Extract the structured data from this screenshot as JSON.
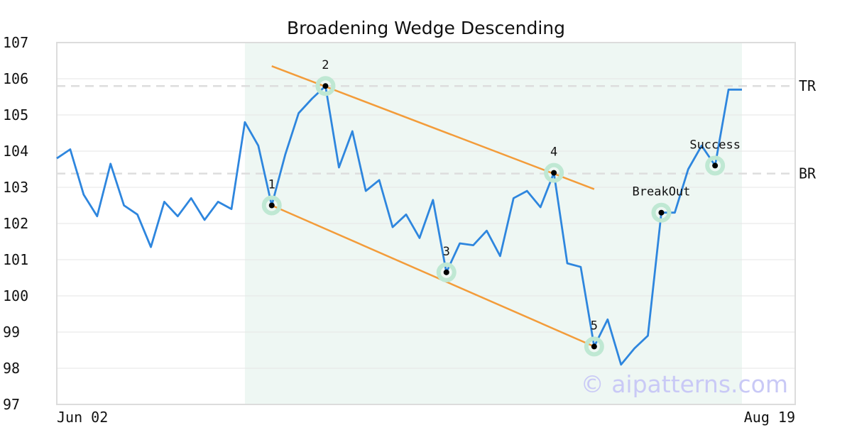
{
  "chart_data": {
    "type": "line",
    "title": "Broadening Wedge Descending",
    "xlabel": "",
    "ylabel": "",
    "ylim": [
      97,
      107
    ],
    "yticks": [
      "97",
      "98",
      "99",
      "100",
      "101",
      "102",
      "103",
      "104",
      "105",
      "106",
      "107"
    ],
    "x_tick_labels": [
      "Jun 02",
      "Aug 19"
    ],
    "grid": "horizontal",
    "colors": {
      "price": "#2e86de",
      "trendline": "#f39c3a",
      "pattern_zone": "#eef7f3",
      "marker_halo": "#bfe8d3",
      "marker_dot": "#000000",
      "reference": "#dddddd",
      "watermark": "#c9c9f6"
    },
    "series": [
      {
        "values": [
          103.8,
          104.05,
          102.8,
          102.2,
          103.65,
          102.5,
          102.25,
          101.35,
          102.6,
          102.2,
          102.7,
          102.1,
          102.6,
          102.4,
          104.8,
          104.15,
          102.5,
          103.9,
          105.05,
          105.45,
          105.8,
          103.55,
          104.55,
          102.9,
          103.2,
          101.9,
          102.25,
          101.6,
          102.65,
          100.65,
          101.45,
          101.4,
          101.8,
          101.1,
          102.7,
          102.9,
          102.45,
          103.4,
          100.9,
          100.8,
          98.6,
          99.35,
          98.1,
          98.55,
          98.9,
          102.3,
          102.3,
          103.5,
          104.15,
          103.6,
          105.7,
          105.7
        ]
      }
    ],
    "pattern_zone": {
      "start_index": 14,
      "end_index": 51
    },
    "trendlines": [
      {
        "start": [
          16,
          106.35
        ],
        "end": [
          40,
          102.95
        ]
      },
      {
        "start": [
          16,
          102.5
        ],
        "end": [
          40,
          98.6
        ]
      }
    ],
    "reference_lines": [
      {
        "label": "TR",
        "value": 105.8
      },
      {
        "label": "BR",
        "value": 103.38
      }
    ],
    "markers": [
      {
        "label": "1",
        "index": 16,
        "value": 102.5
      },
      {
        "label": "2",
        "index": 20,
        "value": 105.8
      },
      {
        "label": "3",
        "index": 29,
        "value": 100.65
      },
      {
        "label": "4",
        "index": 37,
        "value": 103.4
      },
      {
        "label": "5",
        "index": 40,
        "value": 98.6
      },
      {
        "label": "BreakOut",
        "index": 45,
        "value": 102.3
      },
      {
        "label": "Success",
        "index": 49,
        "value": 103.6
      }
    ],
    "watermark": "© aipatterns.com"
  }
}
